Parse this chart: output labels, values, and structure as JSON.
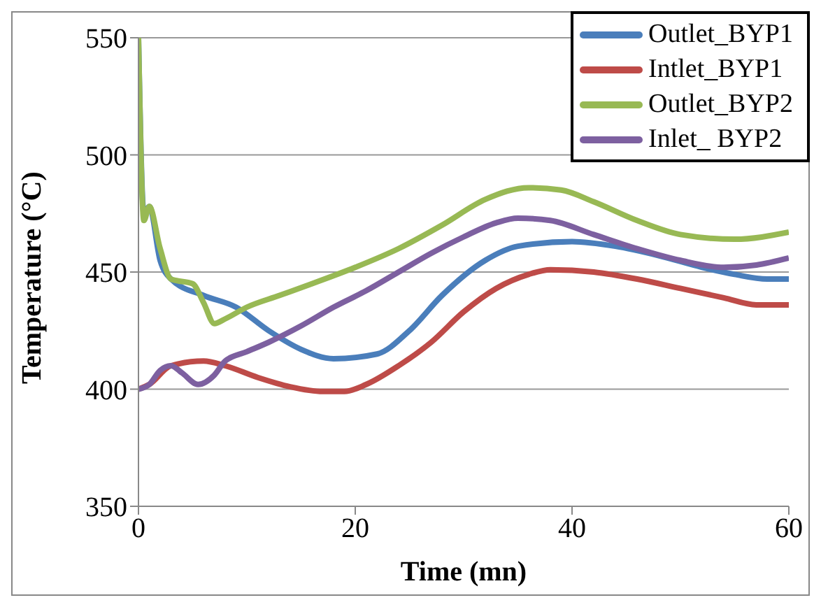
{
  "chart_data": {
    "type": "line",
    "xlabel": "Time (mn)",
    "ylabel": "Temperature (°C)",
    "xlim": [
      0,
      60
    ],
    "xticks": [
      0,
      20,
      40,
      60
    ],
    "ylim": [
      350,
      550
    ],
    "yticks": [
      350,
      400,
      450,
      500,
      550
    ],
    "grid": "y",
    "legend": "top right",
    "marker": "none",
    "line_style": "solid",
    "series": [
      {
        "name": "Outlet_BYP1",
        "color": "#4a7ebb",
        "x": [
          0,
          0.5,
          1,
          2,
          3,
          6,
          9,
          12,
          15,
          18,
          22,
          25,
          28,
          32,
          35,
          40,
          44,
          48,
          52,
          55,
          58,
          60
        ],
        "values": [
          550,
          475,
          478,
          455,
          447,
          440,
          435,
          425,
          417,
          413,
          415,
          425,
          440,
          455,
          461,
          463,
          461,
          457,
          452,
          449,
          447,
          447
        ]
      },
      {
        "name": "Intlet_BYP1",
        "color": "#be4b48",
        "x": [
          0,
          1,
          3,
          6,
          8,
          11,
          14,
          17,
          19,
          21,
          24,
          27,
          30,
          33,
          36,
          38,
          42,
          46,
          50,
          54,
          57,
          60
        ],
        "values": [
          400,
          402,
          410,
          412,
          410,
          405,
          401,
          399,
          399,
          402,
          410,
          420,
          433,
          443,
          449,
          451,
          450,
          447,
          443,
          439,
          436,
          436
        ]
      },
      {
        "name": "Outlet_BYP2",
        "color": "#98b954",
        "x": [
          0,
          0.5,
          1,
          2,
          3,
          5,
          6,
          7,
          8,
          10,
          13,
          16,
          20,
          24,
          28,
          32,
          36,
          39,
          42,
          46,
          50,
          55,
          60
        ],
        "values": [
          550,
          472,
          478,
          460,
          447,
          445,
          437,
          428,
          430,
          435,
          440,
          445,
          452,
          460,
          470,
          481,
          486,
          485,
          480,
          472,
          466,
          464,
          467
        ]
      },
      {
        "name": "Inlet_ BYP2",
        "color": "#7d60a0",
        "x": [
          0,
          1,
          2,
          3,
          4,
          5.5,
          7,
          8,
          10,
          12,
          15,
          18,
          21,
          24,
          27,
          30,
          33,
          35,
          38,
          42,
          46,
          50,
          54,
          57,
          60
        ],
        "values": [
          400,
          402,
          408,
          410,
          407,
          402,
          406,
          412,
          416,
          420,
          427,
          435,
          442,
          450,
          458,
          465,
          471,
          473,
          472,
          466,
          460,
          455,
          452,
          453,
          456
        ]
      }
    ]
  }
}
